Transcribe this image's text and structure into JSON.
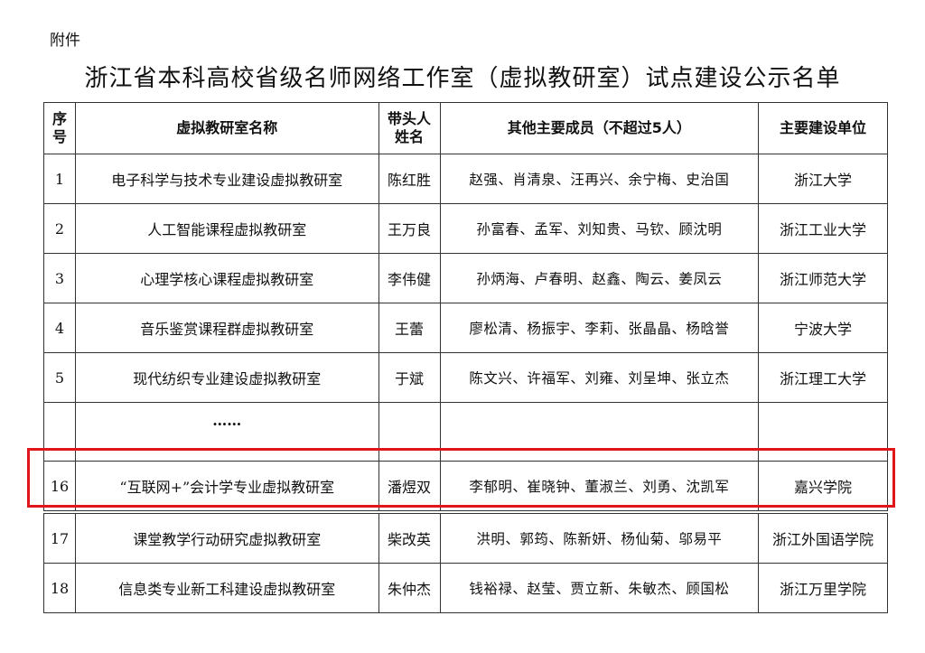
{
  "attachment_label": "附件",
  "title": "浙江省本科高校省级名师网络工作室（虚拟教研室）试点建设公示名单",
  "table": {
    "headers": [
      "序号",
      "虚拟教研室名称",
      "带头人姓名",
      "其他主要成员（不超过5人）",
      "主要建设单位"
    ],
    "rows": [
      {
        "no": "1",
        "name": "电子科学与技术专业建设虚拟教研室",
        "leader": "陈红胜",
        "members": "赵强、肖清泉、汪再兴、余宁梅、史治国",
        "unit": "浙江大学"
      },
      {
        "no": "2",
        "name": "人工智能课程虚拟教研室",
        "leader": "王万良",
        "members": "孙富春、孟军、刘知贵、马钦、顾沈明",
        "unit": "浙江工业大学"
      },
      {
        "no": "3",
        "name": "心理学核心课程虚拟教研室",
        "leader": "李伟健",
        "members": "孙炳海、卢春明、赵鑫、陶云、姜凤云",
        "unit": "浙江师范大学"
      },
      {
        "no": "4",
        "name": "音乐鉴赏课程群虚拟教研室",
        "leader": "王蕾",
        "members": "廖松清、杨振宇、李莉、张晶晶、杨晗誉",
        "unit": "宁波大学"
      },
      {
        "no": "5",
        "name": "现代纺织专业建设虚拟教研室",
        "leader": "于斌",
        "members": "陈文兴、许福军、刘雍、刘呈坤、张立杰",
        "unit": "浙江理工大学"
      },
      {
        "no": "",
        "name": "……",
        "leader": "",
        "members": "",
        "unit": ""
      },
      {
        "no": "16",
        "name": "“互联网+”会计学专业虚拟教研室",
        "leader": "潘煜双",
        "members": "李郁明、崔晓钟、董淑兰、刘勇、沈凯军",
        "unit": "嘉兴学院"
      },
      {
        "no": "17",
        "name": "课堂教学行动研究虚拟教研室",
        "leader": "柴改英",
        "members": "洪明、郭筠、陈新妍、杨仙菊、邬易平",
        "unit": "浙江外国语学院"
      },
      {
        "no": "18",
        "name": "信息类专业新工科建设虚拟教研室",
        "leader": "朱仲杰",
        "members": "钱裕禄、赵莹、贾立新、朱敏杰、顾国松",
        "unit": "浙江万里学院"
      }
    ]
  },
  "highlight_color": "#e0161b"
}
